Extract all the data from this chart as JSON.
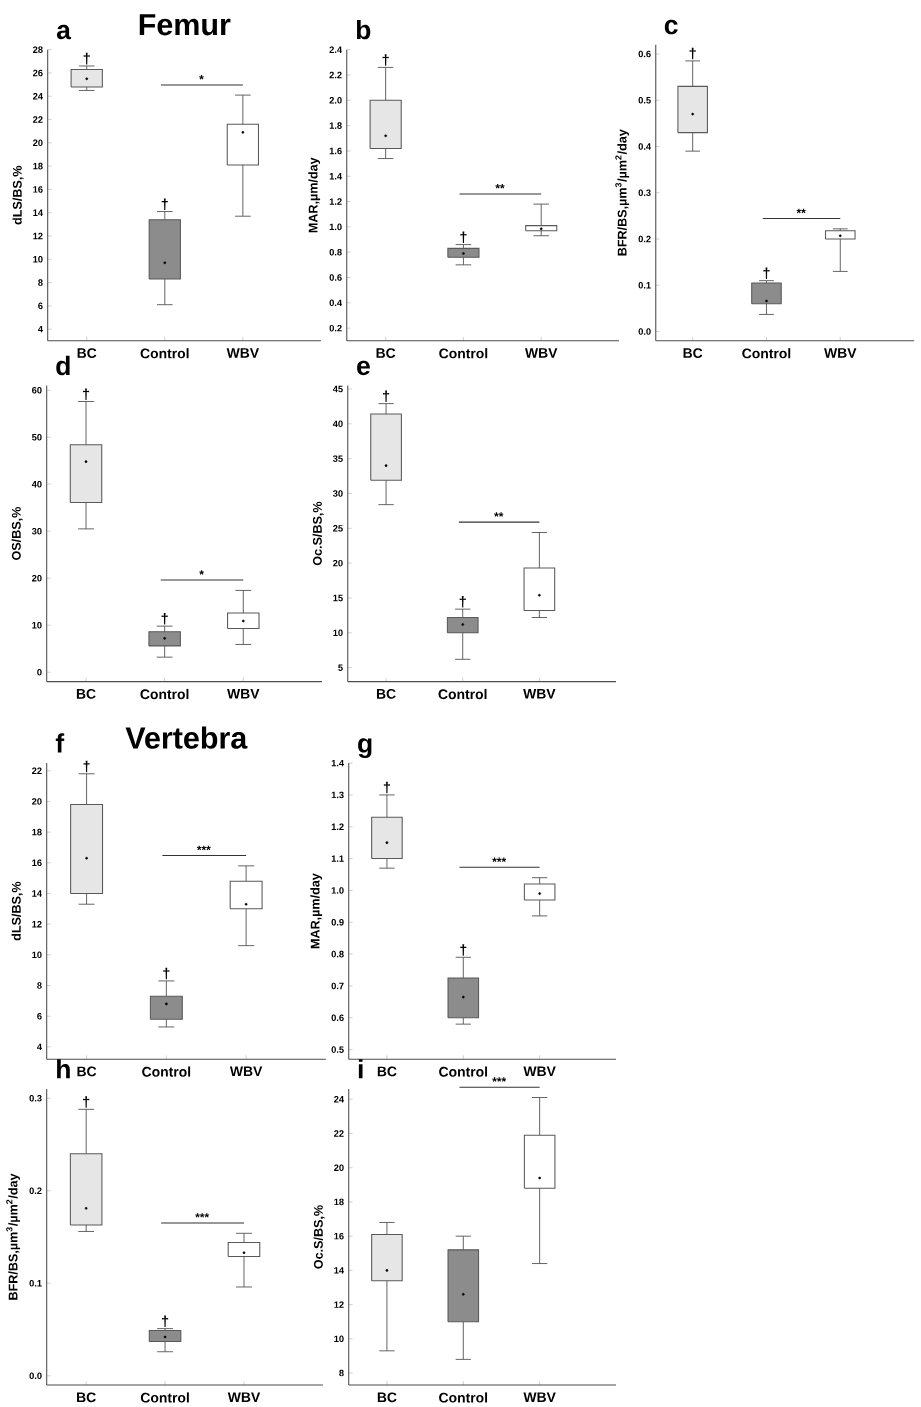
{
  "chart_data": [
    {
      "type": "box",
      "title": "a",
      "subtitle": "Femur",
      "ylabel": "dLS/BS,%",
      "categories": [
        "BC",
        "Control",
        "WBV"
      ],
      "colors": [
        "#e6e6e6",
        "#8c8c8c",
        "#ffffff"
      ],
      "boxes": [
        {
          "low": 24.5,
          "q1": 24.8,
          "median": 25.5,
          "q3": 26.3,
          "high": 26.6
        },
        {
          "low": 6.1,
          "q1": 8.3,
          "median": 9.7,
          "q3": 13.4,
          "high": 14.1
        },
        {
          "low": 13.7,
          "q1": 18.1,
          "median": 20.9,
          "q3": 21.6,
          "high": 24.1
        }
      ],
      "ylim": [
        3,
        28
      ],
      "yticks": [
        4,
        6,
        8,
        10,
        12,
        14,
        16,
        18,
        20,
        22,
        24,
        26,
        28
      ],
      "annotations": [
        "*",
        "†",
        "†"
      ]
    },
    {
      "type": "box",
      "title": "b",
      "ylabel": "MAR,µm/day",
      "categories": [
        "BC",
        "Control",
        "WBV"
      ],
      "colors": [
        "#e6e6e6",
        "#8c8c8c",
        "#ffffff"
      ],
      "boxes": [
        {
          "low": 1.54,
          "q1": 1.62,
          "median": 1.72,
          "q3": 2.0,
          "high": 2.26
        },
        {
          "low": 0.7,
          "q1": 0.76,
          "median": 0.79,
          "q3": 0.83,
          "high": 0.86
        },
        {
          "low": 0.93,
          "q1": 0.97,
          "median": 0.985,
          "q3": 1.01,
          "high": 1.18
        }
      ],
      "ylim": [
        0.1,
        2.4
      ],
      "yticks": [
        0.2,
        0.4,
        0.6,
        0.8,
        {
          "value": 1,
          "label": "1.0"
        },
        1.2,
        1.4,
        1.6,
        1.8,
        {
          "value": 2,
          "label": "2.0"
        },
        2.2,
        2.4
      ],
      "annotations": [
        "**",
        "†",
        "†"
      ]
    },
    {
      "type": "box",
      "title": "c",
      "ylabel": "BFR/BS,µm$^{3}$/µm$^{2}$/day",
      "categories": [
        "BC",
        "Control",
        "WBV"
      ],
      "colors": [
        "#e6e6e6",
        "#8c8c8c",
        "#ffffff"
      ],
      "boxes": [
        {
          "low": 0.39,
          "q1": 0.43,
          "median": 0.47,
          "q3": 0.53,
          "high": 0.585
        },
        {
          "low": 0.037,
          "q1": 0.06,
          "median": 0.066,
          "q3": 0.105,
          "high": 0.11
        },
        {
          "low": 0.13,
          "q1": 0.2,
          "median": 0.207,
          "q3": 0.218,
          "high": 0.222
        }
      ],
      "ylim": [
        -0.02,
        0.62
      ],
      "yticks": [
        {
          "value": 0,
          "label": "0.0"
        },
        0.1,
        0.2,
        0.3,
        0.4,
        0.5,
        0.6
      ],
      "annotations": [
        "**",
        "†",
        "†"
      ]
    },
    {
      "type": "box",
      "title": "d",
      "ylabel": "OS/BS,%",
      "categories": [
        "BC",
        "Control",
        "WBV"
      ],
      "colors": [
        "#e6e6e6",
        "#8c8c8c",
        "#ffffff"
      ],
      "boxes": [
        {
          "low": 30.5,
          "q1": 36.1,
          "median": 44.8,
          "q3": 48.4,
          "high": 57.6
        },
        {
          "low": 3.2,
          "q1": 5.6,
          "median": 7.2,
          "q3": 8.6,
          "high": 9.8
        },
        {
          "low": 5.9,
          "q1": 9.3,
          "median": 10.9,
          "q3": 12.6,
          "high": 17.4
        }
      ],
      "ylim": [
        -2,
        61
      ],
      "yticks": [
        0,
        10,
        20,
        30,
        40,
        50,
        60
      ],
      "annotations": [
        "*",
        "†",
        "†"
      ]
    },
    {
      "type": "box",
      "title": "e",
      "ylabel": "Oc.S/BS,%",
      "categories": [
        "BC",
        "Control",
        "WBV"
      ],
      "colors": [
        "#e6e6e6",
        "#8c8c8c",
        "#ffffff"
      ],
      "boxes": [
        {
          "low": 28.4,
          "q1": 31.9,
          "median": 34.0,
          "q3": 41.4,
          "high": 42.9
        },
        {
          "low": 6.2,
          "q1": 10.0,
          "median": 11.2,
          "q3": 12.2,
          "high": 13.4
        },
        {
          "low": 12.2,
          "q1": 13.2,
          "median": 15.4,
          "q3": 19.3,
          "high": 24.4
        }
      ],
      "ylim": [
        3,
        45.5
      ],
      "yticks": [
        5,
        10,
        15,
        20,
        25,
        30,
        35,
        40,
        45
      ],
      "annotations": [
        "**",
        "†",
        "†"
      ]
    },
    {
      "type": "box",
      "title": "f",
      "subtitle": "Vertebra",
      "ylabel": "dLS/BS,%",
      "categories": [
        "BC",
        "Control",
        "WBV"
      ],
      "colors": [
        "#e6e6e6",
        "#8c8c8c",
        "#ffffff"
      ],
      "boxes": [
        {
          "low": 13.3,
          "q1": 14.0,
          "median": 16.3,
          "q3": 19.8,
          "high": 21.8
        },
        {
          "low": 5.3,
          "q1": 5.8,
          "median": 6.8,
          "q3": 7.3,
          "high": 8.3
        },
        {
          "low": 10.6,
          "q1": 13.0,
          "median": 13.3,
          "q3": 14.8,
          "high": 15.8
        }
      ],
      "ylim": [
        3.2,
        22.5
      ],
      "yticks": [
        4,
        6,
        8,
        10,
        12,
        14,
        16,
        18,
        20,
        22
      ],
      "annotations": [
        "***",
        "†",
        "†"
      ]
    },
    {
      "type": "box",
      "title": "g",
      "ylabel": "MAR,µm/day",
      "categories": [
        "BC",
        "Control",
        "WBV"
      ],
      "colors": [
        "#e6e6e6",
        "#8c8c8c",
        "#ffffff"
      ],
      "boxes": [
        {
          "low": 1.07,
          "q1": 1.1,
          "median": 1.15,
          "q3": 1.23,
          "high": 1.3
        },
        {
          "low": 0.58,
          "q1": 0.6,
          "median": 0.665,
          "q3": 0.725,
          "high": 0.79
        },
        {
          "low": 0.92,
          "q1": 0.97,
          "median": 0.99,
          "q3": 1.02,
          "high": 1.04
        }
      ],
      "ylim": [
        0.47,
        1.4
      ],
      "yticks": [
        0.5,
        0.6,
        0.7,
        0.8,
        0.9,
        {
          "value": 1,
          "label": "1.0"
        },
        1.1,
        1.2,
        1.3,
        1.4
      ],
      "annotations": [
        "***",
        "†",
        "†"
      ]
    },
    {
      "type": "box",
      "title": "h",
      "ylabel": "BFR/BS,µm$^{3}$/µm$^{2}$/day",
      "categories": [
        "BC",
        "Control",
        "WBV"
      ],
      "colors": [
        "#e6e6e6",
        "#8c8c8c",
        "#ffffff"
      ],
      "boxes": [
        {
          "low": 0.156,
          "q1": 0.163,
          "median": 0.181,
          "q3": 0.24,
          "high": 0.288
        },
        {
          "low": 0.026,
          "q1": 0.037,
          "median": 0.042,
          "q3": 0.049,
          "high": 0.051
        },
        {
          "low": 0.096,
          "q1": 0.129,
          "median": 0.133,
          "q3": 0.144,
          "high": 0.154
        }
      ],
      "ylim": [
        -0.01,
        0.31
      ],
      "yticks": [
        {
          "value": 0,
          "label": "0.0"
        },
        0.1,
        0.2,
        0.3
      ],
      "annotations": [
        "***",
        "†",
        "†"
      ]
    },
    {
      "type": "box",
      "title": "i",
      "ylabel": "Oc.S/BS,%",
      "categories": [
        "BC",
        "Control",
        "WBV"
      ],
      "colors": [
        "#e6e6e6",
        "#8c8c8c",
        "#ffffff"
      ],
      "boxes": [
        {
          "low": 9.3,
          "q1": 13.4,
          "median": 14.0,
          "q3": 16.1,
          "high": 16.8
        },
        {
          "low": 8.8,
          "q1": 11.0,
          "median": 12.6,
          "q3": 15.2,
          "high": 16.0
        },
        {
          "low": 14.4,
          "q1": 18.8,
          "median": 19.4,
          "q3": 21.9,
          "high": 24.1
        }
      ],
      "ylim": [
        7.3,
        24.6
      ],
      "yticks": [
        8,
        10,
        12,
        14,
        16,
        18,
        20,
        22,
        24
      ],
      "annotations": [
        "***"
      ]
    }
  ]
}
